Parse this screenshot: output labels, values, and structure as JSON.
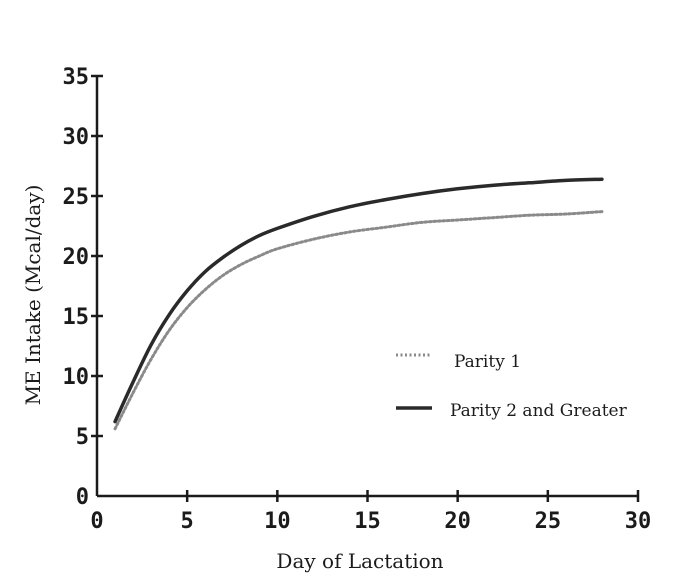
{
  "chart_data": {
    "type": "line",
    "title": "",
    "xlabel": "Day of Lactation",
    "ylabel": "ME Intake (Mcal/day)",
    "xlim": [
      0,
      30
    ],
    "ylim": [
      0,
      35
    ],
    "xticks": [
      "0",
      "5",
      "10",
      "15",
      "20",
      "25",
      "30"
    ],
    "yticks": [
      "0",
      "5",
      "10",
      "15",
      "20",
      "25",
      "30",
      "35"
    ],
    "grid": false,
    "legend_position": "center-right",
    "series": [
      {
        "name": "Parity 1",
        "style": "dotted",
        "color": "#8a8a8a",
        "x": [
          1,
          2,
          3,
          4,
          5,
          6,
          7,
          8,
          9,
          10,
          12,
          14,
          16,
          18,
          20,
          22,
          24,
          26,
          28
        ],
        "y": [
          5.6,
          8.6,
          11.4,
          13.8,
          15.7,
          17.2,
          18.4,
          19.3,
          20.0,
          20.6,
          21.4,
          22.0,
          22.4,
          22.8,
          23.0,
          23.2,
          23.4,
          23.5,
          23.7
        ]
      },
      {
        "name": "Parity 2 and Greater",
        "style": "solid",
        "color": "#2a2a2a",
        "x": [
          1,
          2,
          3,
          4,
          5,
          6,
          7,
          8,
          9,
          10,
          12,
          14,
          16,
          18,
          20,
          22,
          24,
          26,
          28
        ],
        "y": [
          6.2,
          9.5,
          12.6,
          15.1,
          17.1,
          18.7,
          19.9,
          20.9,
          21.7,
          22.3,
          23.3,
          24.1,
          24.7,
          25.2,
          25.6,
          25.9,
          26.1,
          26.3,
          26.4
        ]
      }
    ]
  }
}
